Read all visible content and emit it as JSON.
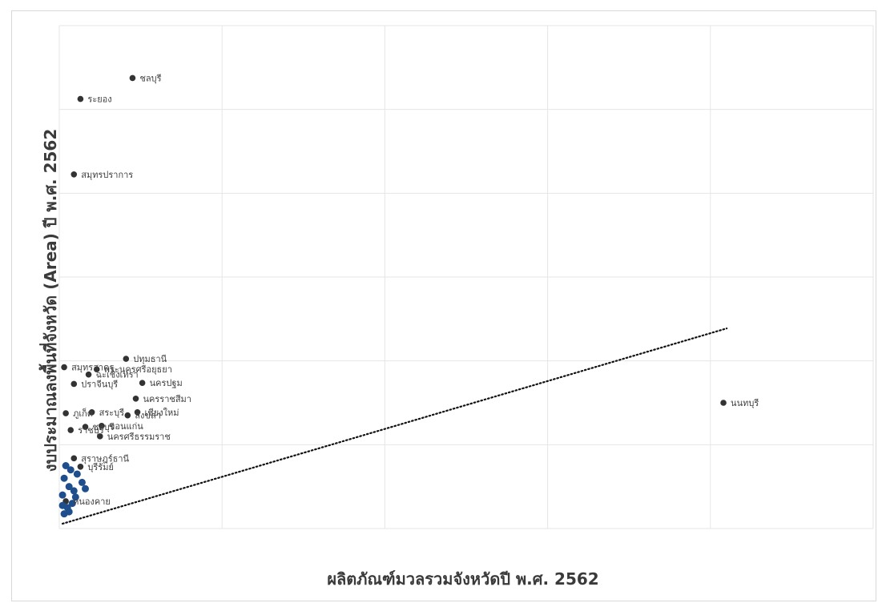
{
  "chart_data": {
    "type": "scatter",
    "title": "",
    "xlabel": "ผลิตภัณฑ์มวลรวมจังหวัดปี พ.ศ. 2562",
    "ylabel": "งบประมาณลงพื้นที่จังหวัด (Area) ปี พ.ศ. 2562",
    "grid": true,
    "legend": "none",
    "trendline": {
      "type": "linear",
      "style": "dotted",
      "x_start": 0.2,
      "y_start": 0.23,
      "x_end": 41,
      "y_end": 9.55
    },
    "xlim": [
      0,
      50
    ],
    "ylim": [
      0,
      24
    ],
    "point_colors": {
      "labeled": "#333333",
      "cluster": "#1f4e8c"
    },
    "points": [
      {
        "label": "ชลบุรี",
        "x": 4.5,
        "y": 21.5
      },
      {
        "label": "ระยอง",
        "x": 1.3,
        "y": 20.5
      },
      {
        "label": "สมุทรปราการ",
        "x": 0.9,
        "y": 16.9
      },
      {
        "label": "นนทบุรี",
        "x": 40.8,
        "y": 6.0
      },
      {
        "label": "ปทุมธานี",
        "x": 4.1,
        "y": 8.1
      },
      {
        "label": "สมุทรสาคร",
        "x": 0.3,
        "y": 7.7
      },
      {
        "label": "พระนครศรีอยุธยา",
        "x": 2.3,
        "y": 7.6
      },
      {
        "label": "ฉะเชิงเทรา",
        "x": 1.8,
        "y": 7.35
      },
      {
        "label": "ปราจีนบุรี",
        "x": 0.9,
        "y": 6.9
      },
      {
        "label": "นครปฐม",
        "x": 5.1,
        "y": 6.95
      },
      {
        "label": "นครราชสีมา",
        "x": 4.7,
        "y": 6.2
      },
      {
        "label": "ภูเก็ต",
        "x": 0.4,
        "y": 5.5
      },
      {
        "label": "สระบุรี",
        "x": 2.0,
        "y": 5.55
      },
      {
        "label": "เชียงใหม่",
        "x": 4.8,
        "y": 5.55
      },
      {
        "label": "สงขลา",
        "x": 4.2,
        "y": 5.4
      },
      {
        "label": "ราชบุรี",
        "x": 0.7,
        "y": 4.7
      },
      {
        "label": "ชลบุรี",
        "x": 1.6,
        "y": 4.85
      },
      {
        "label": "ขอนแก่น",
        "x": 2.6,
        "y": 4.9
      },
      {
        "label": "นครศรีธรรมราช",
        "x": 2.5,
        "y": 4.4
      },
      {
        "label": "สุราษฎร์ธานี",
        "x": 0.9,
        "y": 3.35
      },
      {
        "label": "บุรีรัมย์",
        "x": 1.3,
        "y": 2.95
      },
      {
        "label": "หนองคาย",
        "x": 0.4,
        "y": 1.3
      },
      {
        "label": "",
        "x": 0.3,
        "y": 2.4
      },
      {
        "label": "",
        "x": 0.6,
        "y": 2.0
      },
      {
        "label": "",
        "x": 0.9,
        "y": 1.8
      },
      {
        "label": "",
        "x": 1.1,
        "y": 2.6
      },
      {
        "label": "",
        "x": 0.2,
        "y": 1.6
      },
      {
        "label": "",
        "x": 0.5,
        "y": 1.0
      },
      {
        "label": "",
        "x": 0.8,
        "y": 1.2
      },
      {
        "label": "",
        "x": 1.4,
        "y": 2.2
      },
      {
        "label": "",
        "x": 0.3,
        "y": 0.7
      },
      {
        "label": "",
        "x": 1.0,
        "y": 1.5
      },
      {
        "label": "",
        "x": 0.7,
        "y": 2.8
      },
      {
        "label": "",
        "x": 1.6,
        "y": 1.9
      },
      {
        "label": "",
        "x": 0.4,
        "y": 3.0
      },
      {
        "label": "",
        "x": 0.2,
        "y": 1.1
      },
      {
        "label": "",
        "x": 0.6,
        "y": 0.8
      }
    ]
  }
}
